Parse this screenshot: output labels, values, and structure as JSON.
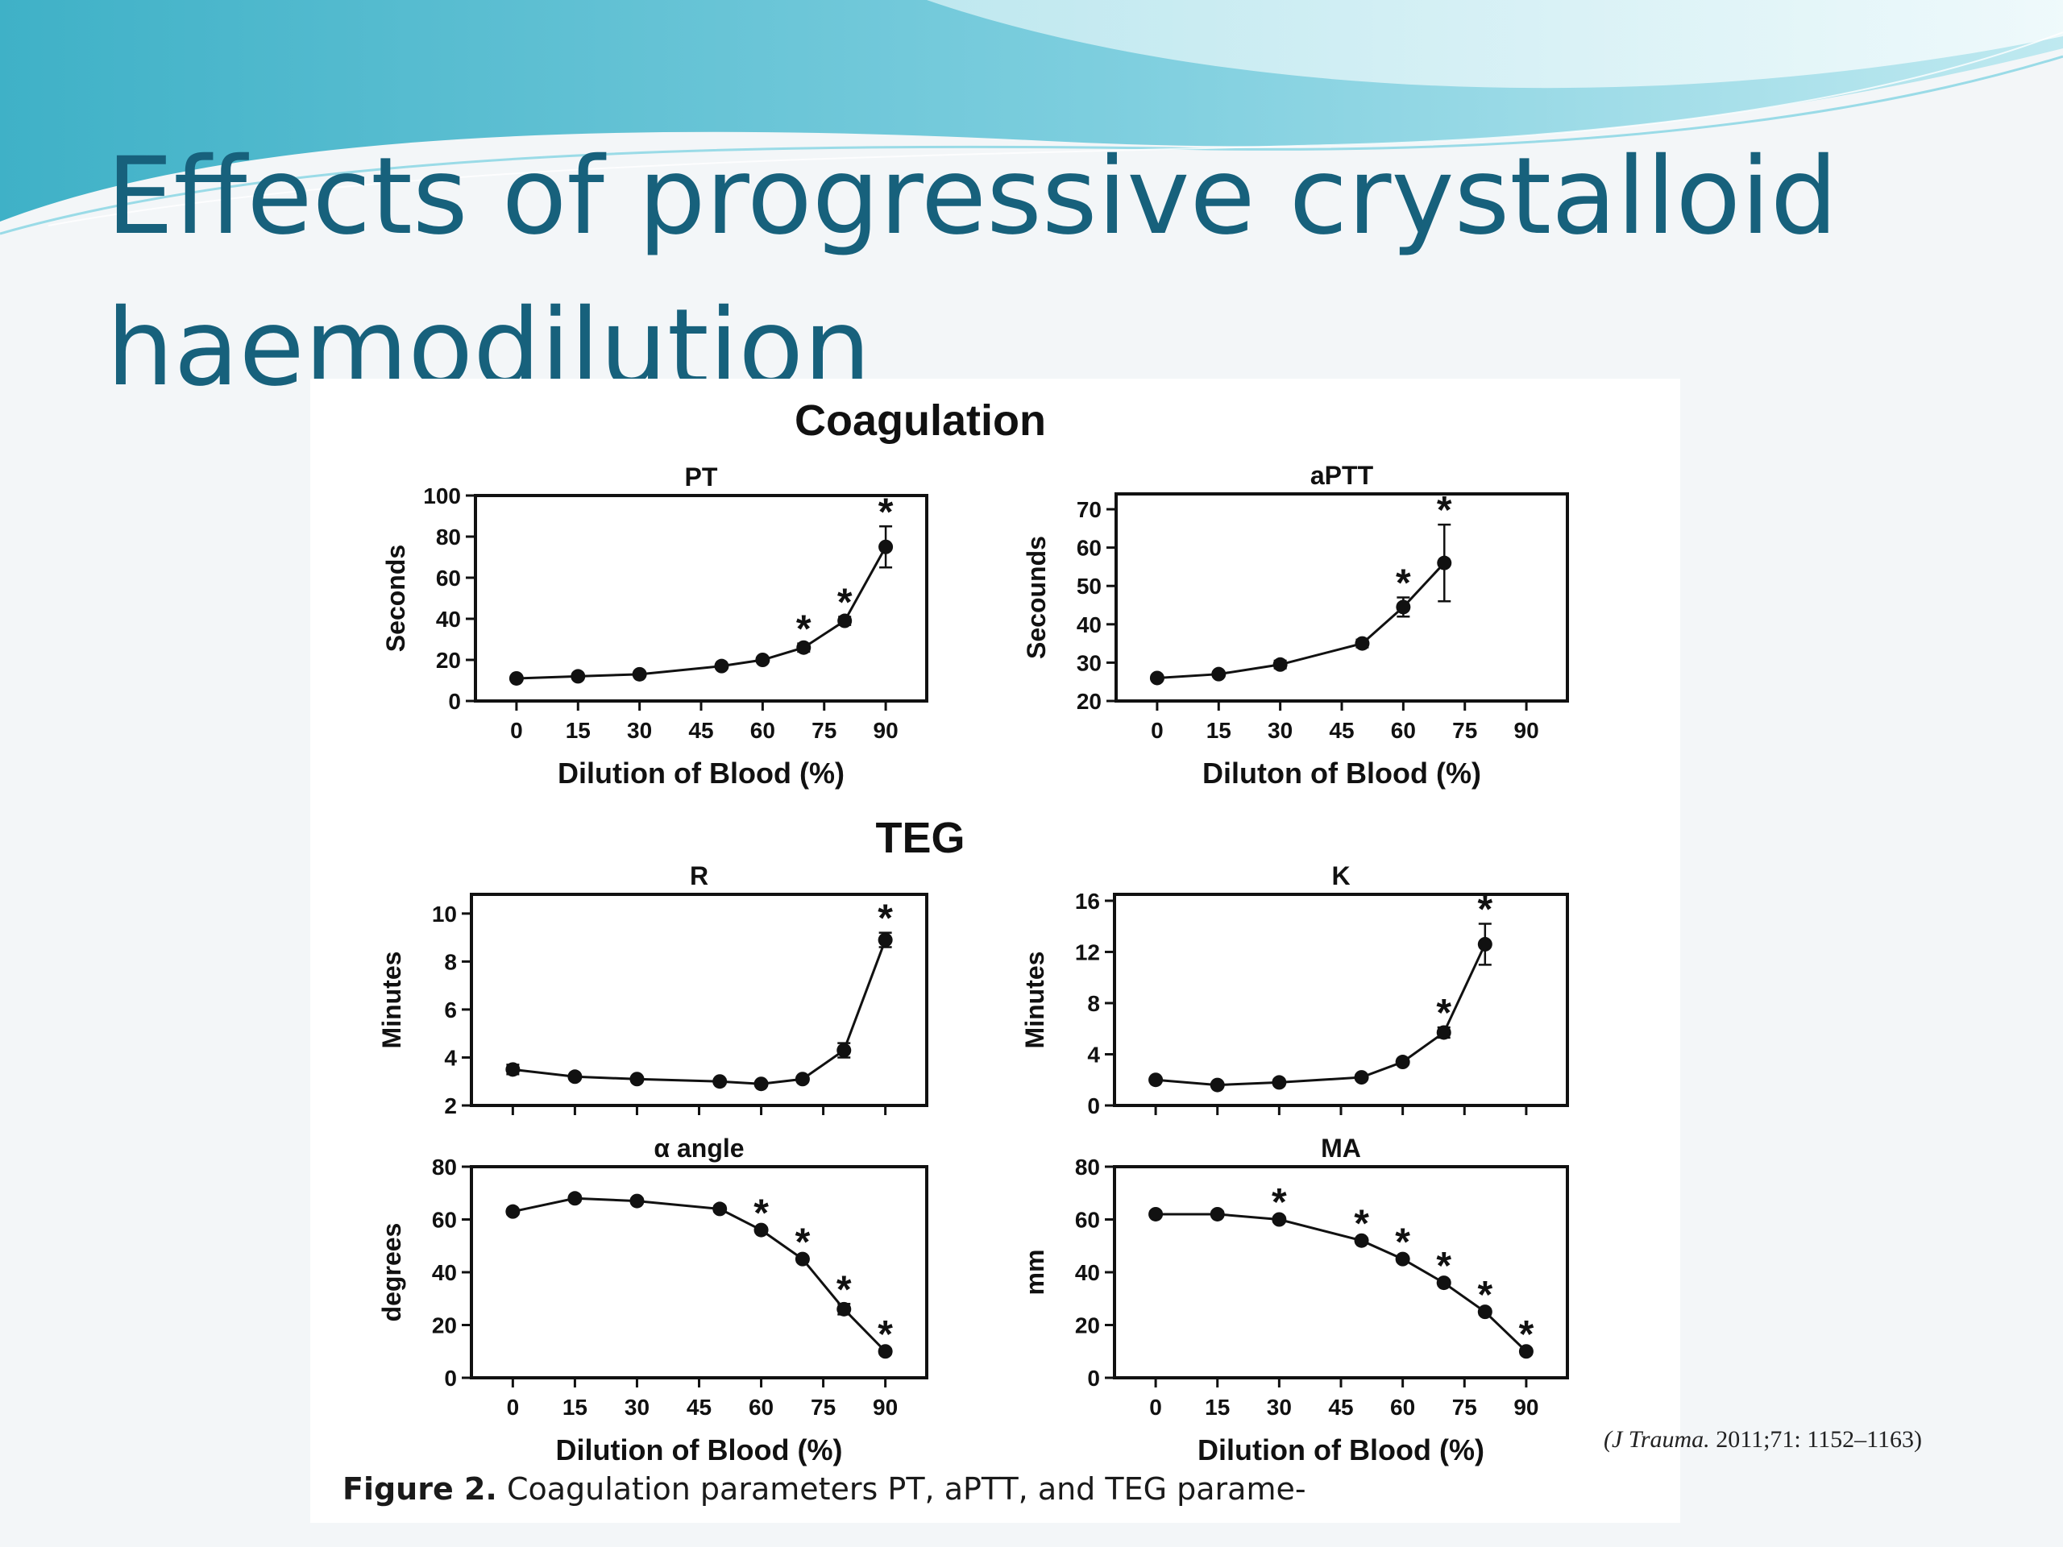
{
  "slide": {
    "title_line1": "Effects of progressive crystalloid",
    "title_line2": "haemodilution",
    "citation_journal": "(J Trauma.",
    "citation_ref": " 2011;71: 1152–1163)",
    "caption_label": "Figure 2.",
    "caption_text": "  Coagulation parameters PT, aPTT, and TEG parame-",
    "section_coagulation": "Coagulation",
    "section_teg": "TEG",
    "colors": {
      "title": "#17617c",
      "banner_dark": "#3fb1c7",
      "banner_light": "#bfe9f0",
      "ink": "#111111"
    }
  },
  "chart_data": [
    {
      "id": "pt",
      "type": "line",
      "title": "PT",
      "xlabel": "Dilution of Blood (%)",
      "ylabel": "Seconds",
      "xticks": [
        0,
        15,
        30,
        45,
        60,
        75,
        90
      ],
      "xtick_labels": [
        "0",
        "15",
        "30",
        "45",
        "60",
        "75",
        "90"
      ],
      "yticks": [
        0,
        20,
        40,
        60,
        80,
        100
      ],
      "ytick_labels": [
        "0",
        "20",
        "40",
        "60",
        "80",
        "100"
      ],
      "xlim": [
        -10,
        100
      ],
      "ylim": [
        0,
        100
      ],
      "x": [
        0,
        15,
        30,
        50,
        60,
        70,
        80,
        90
      ],
      "y": [
        11,
        12,
        13,
        17,
        20,
        26,
        39,
        75
      ],
      "err": [
        1,
        1,
        1,
        1,
        1,
        2,
        2,
        10
      ],
      "significant": [
        false,
        false,
        false,
        false,
        false,
        true,
        true,
        true
      ]
    },
    {
      "id": "aptt",
      "type": "line",
      "title": "aPTT",
      "xlabel": "Diluton of Blood (%)",
      "ylabel": "Secounds",
      "xticks": [
        0,
        15,
        30,
        45,
        60,
        75,
        90
      ],
      "xtick_labels": [
        "0",
        "15",
        "30",
        "45",
        "60",
        "75",
        "90"
      ],
      "yticks": [
        20,
        30,
        40,
        50,
        60,
        70
      ],
      "ytick_labels": [
        "20",
        "30",
        "40",
        "50",
        "60",
        "70"
      ],
      "xlim": [
        -10,
        100
      ],
      "ylim": [
        20,
        74
      ],
      "x": [
        0,
        15,
        30,
        50,
        60,
        70
      ],
      "y": [
        26,
        27,
        29.5,
        35,
        44.5,
        56
      ],
      "err": [
        0.6,
        0.6,
        1,
        1,
        2.5,
        10
      ],
      "significant": [
        false,
        false,
        false,
        false,
        true,
        true
      ]
    },
    {
      "id": "r",
      "type": "line",
      "title": "R",
      "xlabel": "",
      "ylabel": "Minutes",
      "xticks": [
        0,
        15,
        30,
        45,
        60,
        75,
        90
      ],
      "xtick_labels": [],
      "yticks": [
        2,
        4,
        6,
        8,
        10
      ],
      "ytick_labels": [
        "2",
        "4",
        "6",
        "8",
        "10"
      ],
      "xlim": [
        -10,
        100
      ],
      "ylim": [
        2,
        10.8
      ],
      "x": [
        0,
        15,
        30,
        50,
        60,
        70,
        80,
        90
      ],
      "y": [
        3.5,
        3.2,
        3.1,
        3.0,
        2.9,
        3.1,
        4.3,
        8.9
      ],
      "err": [
        0.2,
        0.1,
        0.1,
        0.1,
        0.1,
        0.1,
        0.3,
        0.3
      ],
      "significant": [
        false,
        false,
        false,
        false,
        false,
        false,
        false,
        true
      ]
    },
    {
      "id": "k",
      "type": "line",
      "title": "K",
      "xlabel": "",
      "ylabel": "Minutes",
      "xticks": [
        0,
        15,
        30,
        45,
        60,
        75,
        90
      ],
      "xtick_labels": [],
      "yticks": [
        0,
        4,
        8,
        12,
        16
      ],
      "ytick_labels": [
        "0",
        "4",
        "8",
        "12",
        "16"
      ],
      "xlim": [
        -10,
        100
      ],
      "ylim": [
        0,
        16.5
      ],
      "x": [
        0,
        15,
        30,
        50,
        60,
        70,
        80
      ],
      "y": [
        2.0,
        1.6,
        1.8,
        2.2,
        3.4,
        5.7,
        12.6
      ],
      "err": [
        0.1,
        0.1,
        0.1,
        0.2,
        0.2,
        0.4,
        1.6
      ],
      "significant": [
        false,
        false,
        false,
        false,
        false,
        true,
        true
      ]
    },
    {
      "id": "alpha",
      "type": "line",
      "title": "α angle",
      "xlabel": "Dilution of  Blood (%)",
      "ylabel": "degrees",
      "xticks": [
        0,
        15,
        30,
        45,
        60,
        75,
        90
      ],
      "xtick_labels": [
        "0",
        "15",
        "30",
        "45",
        "60",
        "75",
        "90"
      ],
      "yticks": [
        0,
        20,
        40,
        60,
        80
      ],
      "ytick_labels": [
        "0",
        "20",
        "40",
        "60",
        "80"
      ],
      "xlim": [
        -10,
        100
      ],
      "ylim": [
        0,
        80
      ],
      "x": [
        0,
        15,
        30,
        50,
        60,
        70,
        80,
        90
      ],
      "y": [
        63,
        68,
        67,
        64,
        56,
        45,
        26,
        10
      ],
      "err": [
        1,
        1,
        1,
        1,
        1,
        1,
        2,
        1
      ],
      "significant": [
        false,
        false,
        false,
        false,
        true,
        true,
        true,
        true
      ]
    },
    {
      "id": "ma",
      "type": "line",
      "title": "MA",
      "xlabel": "Dilution of Blood (%)",
      "ylabel": "mm",
      "xticks": [
        0,
        15,
        30,
        45,
        60,
        75,
        90
      ],
      "xtick_labels": [
        "0",
        "15",
        "30",
        "45",
        "60",
        "75",
        "90"
      ],
      "yticks": [
        0,
        20,
        40,
        60,
        80
      ],
      "ytick_labels": [
        "0",
        "20",
        "40",
        "60",
        "80"
      ],
      "xlim": [
        -10,
        100
      ],
      "ylim": [
        0,
        80
      ],
      "x": [
        0,
        15,
        30,
        50,
        60,
        70,
        80,
        90
      ],
      "y": [
        62,
        62,
        60,
        52,
        45,
        36,
        25,
        10
      ],
      "err": [
        1,
        1,
        1,
        1,
        1,
        1,
        1,
        1
      ],
      "significant": [
        false,
        false,
        true,
        true,
        true,
        true,
        true,
        true
      ]
    }
  ]
}
